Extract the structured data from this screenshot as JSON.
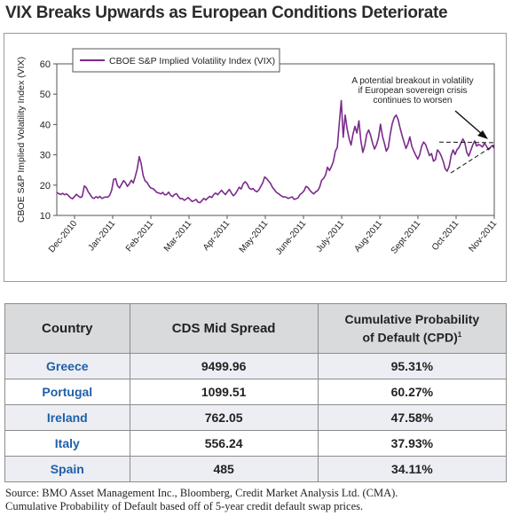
{
  "title": "VIX Breaks Upwards as European Conditions Deteriorate",
  "chart_data": {
    "type": "line",
    "title": "",
    "ylabel": "CBOE S&P Implied Volatility Index (VIX)",
    "xlabel": "",
    "ylim": [
      10,
      60
    ],
    "yticks": [
      "10",
      "20",
      "30",
      "40",
      "50",
      "60"
    ],
    "xticks": [
      "Dec-2010",
      "Jan-2011",
      "Feb-2011",
      "Mar-2011",
      "Apr-2011",
      "May-2011",
      "June-2011",
      "July-2011",
      "Aug-2011",
      "Sept-2011",
      "Oct-2011",
      "Nov-2011"
    ],
    "legend_position": "top-left",
    "grid": false,
    "line_color": "#7b2a8c",
    "series": [
      {
        "name": "CBOE S&P Implied Volatility Index (VIX)",
        "values": [
          17.6,
          17.2,
          16.9,
          17.3,
          16.8,
          17.1,
          16.5,
          15.8,
          15.5,
          16.2,
          17.0,
          16.4,
          15.9,
          16.3,
          19.7,
          19.2,
          17.8,
          16.9,
          15.9,
          15.6,
          16.2,
          15.8,
          16.3,
          15.6,
          15.9,
          16.1,
          16.0,
          16.7,
          18.4,
          21.9,
          22.1,
          19.8,
          19.1,
          20.3,
          21.5,
          20.8,
          19.6,
          20.4,
          21.6,
          20.7,
          22.8,
          25.3,
          29.4,
          27.1,
          23.2,
          21.4,
          20.9,
          19.8,
          19.0,
          18.9,
          18.3,
          17.6,
          17.4,
          17.1,
          17.6,
          16.8,
          16.9,
          17.7,
          16.7,
          16.2,
          16.9,
          17.2,
          16.2,
          15.5,
          15.6,
          15.0,
          15.4,
          15.9,
          15.2,
          14.6,
          14.9,
          15.3,
          14.4,
          14.2,
          14.9,
          15.6,
          15.1,
          15.8,
          16.3,
          15.9,
          16.9,
          17.4,
          16.8,
          17.6,
          18.3,
          17.5,
          16.9,
          17.8,
          18.6,
          17.4,
          16.5,
          17.1,
          18.2,
          19.3,
          18.7,
          20.4,
          21.1,
          20.5,
          19.1,
          18.6,
          18.9,
          18.2,
          17.8,
          18.4,
          19.6,
          20.8,
          22.7,
          22.1,
          21.3,
          20.5,
          19.2,
          18.4,
          17.6,
          17.2,
          16.7,
          16.2,
          16.1,
          16.0,
          15.6,
          15.9,
          16.1,
          15.3,
          15.5,
          15.8,
          16.9,
          17.4,
          18.1,
          19.6,
          19.2,
          18.3,
          17.6,
          17.1,
          17.8,
          18.2,
          19.3,
          21.6,
          22.2,
          23.4,
          25.9,
          24.8,
          26.1,
          27.8,
          31.2,
          32.4,
          40.2,
          47.9,
          35.8,
          43.1,
          38.6,
          35.4,
          33.2,
          36.8,
          39.4,
          37.2,
          41.2,
          34.6,
          30.8,
          33.1,
          36.8,
          38.2,
          36.4,
          33.8,
          31.9,
          33.4,
          35.7,
          40.1,
          36.2,
          33.8,
          31.2,
          32.4,
          36.8,
          40.2,
          42.3,
          43.1,
          41.6,
          38.8,
          36.4,
          34.2,
          32.1,
          33.6,
          35.9,
          32.8,
          31.2,
          29.8,
          28.6,
          30.1,
          32.8,
          34.2,
          33.4,
          31.6,
          29.7,
          30.4,
          27.9,
          28.4,
          31.6,
          30.9,
          29.6,
          27.8,
          25.4,
          24.6,
          26.2,
          29.8,
          31.6,
          30.1,
          31.7,
          32.4,
          33.8,
          35.2,
          34.1,
          30.8,
          29.6,
          31.4,
          33.2,
          34.6,
          32.9,
          33.4,
          33.1,
          32.6,
          33.8,
          32.9,
          31.7,
          32.4,
          33.1,
          32.2
        ]
      }
    ],
    "annotation": {
      "text": [
        "A potential breakout in volatility",
        "if European sovereign crisis",
        "continues to worsen"
      ]
    },
    "trendlines": {
      "upper_y": [
        34.2,
        34.0
      ],
      "lower_y": [
        24.0,
        33.2
      ]
    }
  },
  "table": {
    "headers": {
      "country": "Country",
      "cds": "CDS Mid Spread",
      "cpd_line1": "Cumulative Probability",
      "cpd_line2": "of Default (CPD)",
      "cpd_sup": "1"
    },
    "rows": [
      {
        "country": "Greece",
        "cds": "9499.96",
        "cpd": "95.31%"
      },
      {
        "country": "Portugal",
        "cds": "1099.51",
        "cpd": "60.27%"
      },
      {
        "country": "Ireland",
        "cds": "762.05",
        "cpd": "47.58%"
      },
      {
        "country": "Italy",
        "cds": "556.24",
        "cpd": "37.93%"
      },
      {
        "country": "Spain",
        "cds": "485",
        "cpd": "34.11%"
      }
    ]
  },
  "source": {
    "line1": "Source: BMO Asset Management Inc., Bloomberg, Credit Market Analysis Ltd. (CMA).",
    "line2": "Cumulative Probability of Default based off of 5-year credit default swap prices."
  }
}
